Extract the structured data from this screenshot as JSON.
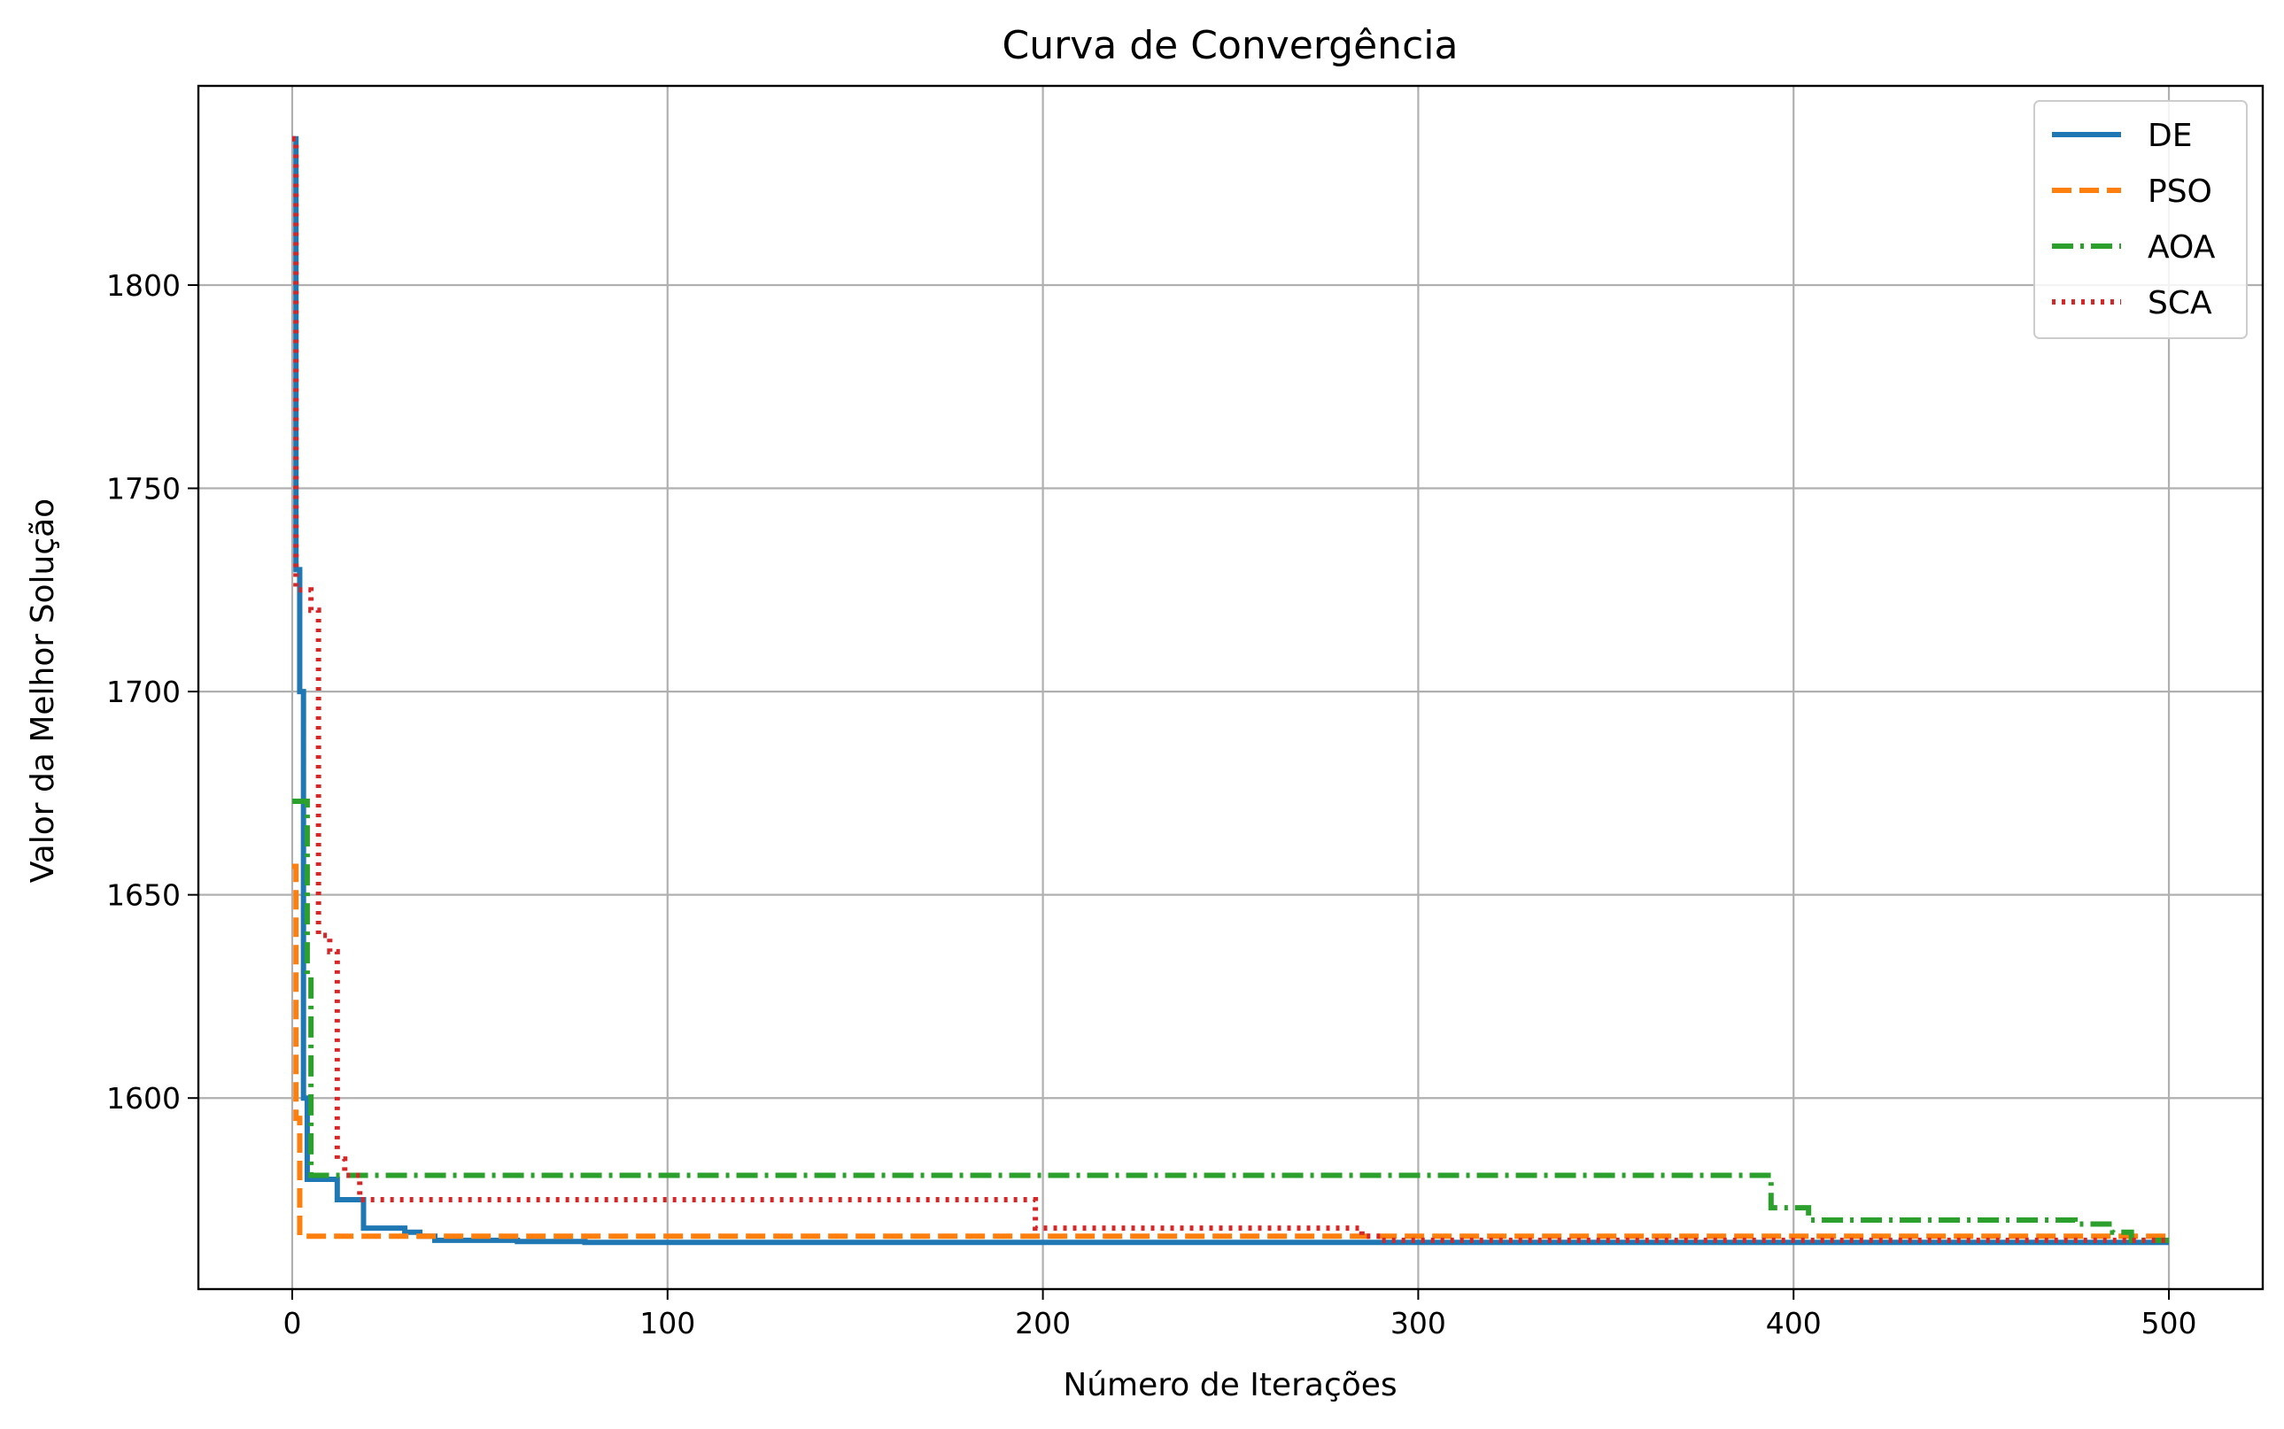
{
  "chart_data": {
    "type": "line",
    "title": "Curva de Convergência",
    "xlabel": "Número de Iterações",
    "ylabel": "Valor da Melhor Solução",
    "xlim": [
      -25,
      525
    ],
    "ylim": [
      1553,
      1849
    ],
    "xticks": [
      0,
      100,
      200,
      300,
      400,
      500
    ],
    "yticks": [
      1600,
      1650,
      1700,
      1750,
      1800
    ],
    "grid": true,
    "legend_position": "top-right",
    "series": [
      {
        "name": "DE",
        "color": "#1f77b4",
        "dash": "solid",
        "points": [
          [
            0,
            1836
          ],
          [
            1,
            1836
          ],
          [
            1,
            1730
          ],
          [
            2,
            1730
          ],
          [
            2,
            1700
          ],
          [
            3,
            1700
          ],
          [
            3,
            1600
          ],
          [
            4,
            1600
          ],
          [
            4,
            1580
          ],
          [
            12,
            1580
          ],
          [
            12,
            1575
          ],
          [
            19,
            1575
          ],
          [
            19,
            1568
          ],
          [
            30,
            1568
          ],
          [
            30,
            1567
          ],
          [
            34,
            1567
          ],
          [
            34,
            1566
          ],
          [
            38,
            1566
          ],
          [
            38,
            1565
          ],
          [
            60,
            1565
          ],
          [
            60,
            1564.7
          ],
          [
            78,
            1564.7
          ],
          [
            78,
            1564.5
          ],
          [
            500,
            1564.5
          ]
        ]
      },
      {
        "name": "PSO",
        "color": "#ff7f0e",
        "dash": "dashed",
        "points": [
          [
            0,
            1657
          ],
          [
            1,
            1657
          ],
          [
            1,
            1595
          ],
          [
            2,
            1595
          ],
          [
            2,
            1566
          ],
          [
            500,
            1566
          ]
        ]
      },
      {
        "name": "AOA",
        "color": "#2ca02c",
        "dash": "dashdot",
        "points": [
          [
            0,
            1673
          ],
          [
            4,
            1673
          ],
          [
            4,
            1630
          ],
          [
            5,
            1630
          ],
          [
            5,
            1581
          ],
          [
            394,
            1581
          ],
          [
            394,
            1573
          ],
          [
            404,
            1573
          ],
          [
            404,
            1570
          ],
          [
            475,
            1570
          ],
          [
            475,
            1569
          ],
          [
            485,
            1569
          ],
          [
            485,
            1567
          ],
          [
            490,
            1567
          ],
          [
            490,
            1565
          ],
          [
            500,
            1565
          ]
        ]
      },
      {
        "name": "SCA",
        "color": "#d62728",
        "dash": "dotted",
        "points": [
          [
            0,
            1836
          ],
          [
            1,
            1836
          ],
          [
            1,
            1725
          ],
          [
            5,
            1725
          ],
          [
            5,
            1720
          ],
          [
            7,
            1720
          ],
          [
            7,
            1640
          ],
          [
            10,
            1640
          ],
          [
            10,
            1636
          ],
          [
            12,
            1636
          ],
          [
            12,
            1585
          ],
          [
            14,
            1585
          ],
          [
            14,
            1581
          ],
          [
            18,
            1581
          ],
          [
            18,
            1575
          ],
          [
            198,
            1575
          ],
          [
            198,
            1568
          ],
          [
            285,
            1568
          ],
          [
            285,
            1566
          ],
          [
            290,
            1566
          ],
          [
            290,
            1565
          ],
          [
            500,
            1565
          ]
        ]
      }
    ]
  }
}
